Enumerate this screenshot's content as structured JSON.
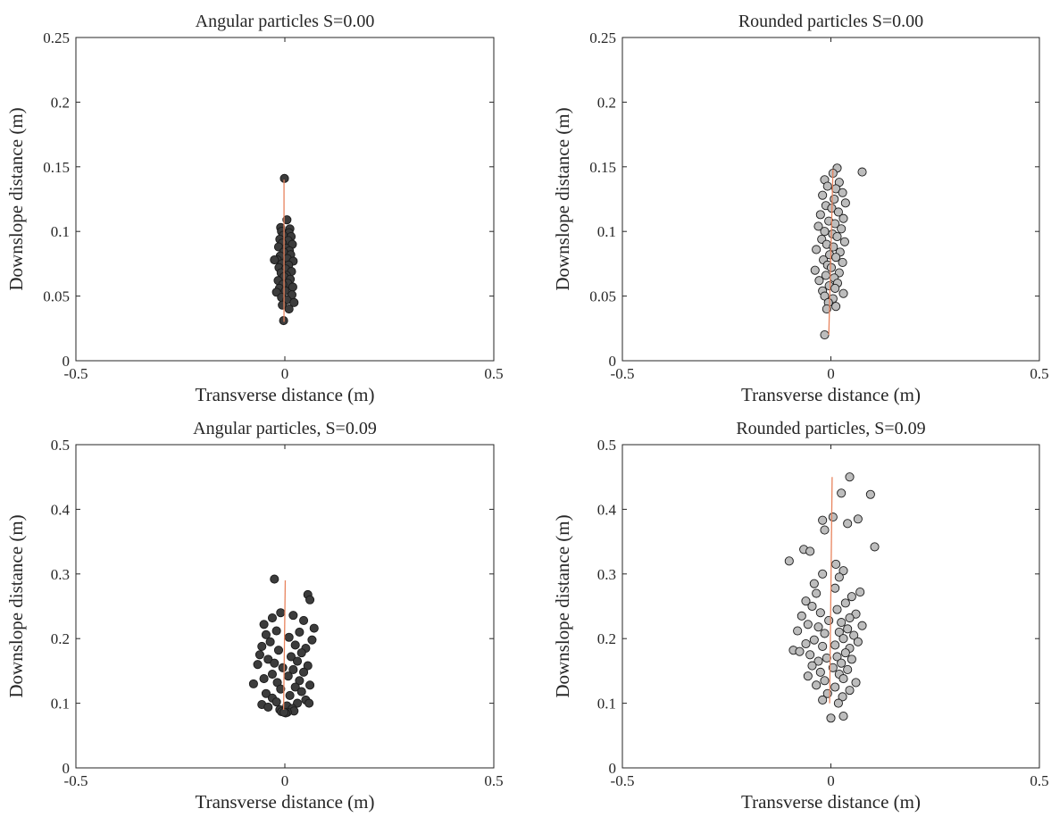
{
  "chart_data": [
    {
      "type": "scatter",
      "title": "Angular particles S=0.00",
      "xlabel": "Transverse distance (m)",
      "ylabel": "Downslope distance (m)",
      "xlim": [
        -0.5,
        0.5
      ],
      "ylim": [
        0,
        0.25
      ],
      "xticks": [
        -0.5,
        0,
        0.5
      ],
      "xtick_labels": [
        "-0.5",
        "0",
        "0.5"
      ],
      "yticks": [
        0,
        0.05,
        0.1,
        0.15,
        0.2,
        0.25
      ],
      "ytick_labels": [
        "0",
        "0.05",
        "0.1",
        "0.15",
        "0.2",
        "0.25"
      ],
      "grid": false,
      "marker_color": "#3c3c3c",
      "line_color": "#e8845e",
      "trend_line": {
        "x": [
          -0.002,
          -0.002
        ],
        "y": [
          0.03,
          0.14
        ]
      },
      "points": {
        "x": [
          -0.001,
          0.005,
          -0.01,
          0.012,
          -0.008,
          0.01,
          -0.004,
          0.015,
          -0.012,
          0.008,
          -0.006,
          0.018,
          -0.015,
          0.003,
          0.011,
          -0.003,
          0.014,
          -0.011,
          0.006,
          -0.018,
          0.02,
          -0.007,
          0.009,
          -0.014,
          0.002,
          0.016,
          -0.009,
          0.004,
          -0.002,
          0.013,
          -0.016,
          0.007,
          -0.005,
          0.019,
          -0.013,
          0.001,
          -0.02,
          0.017,
          -0.008,
          0.005,
          -0.025,
          0.022,
          -0.006,
          0.01,
          -0.003
        ],
        "y": [
          0.141,
          0.109,
          0.103,
          0.102,
          0.1,
          0.099,
          0.097,
          0.096,
          0.094,
          0.093,
          0.091,
          0.09,
          0.088,
          0.087,
          0.085,
          0.084,
          0.082,
          0.081,
          0.079,
          0.078,
          0.077,
          0.075,
          0.074,
          0.072,
          0.071,
          0.069,
          0.068,
          0.066,
          0.065,
          0.063,
          0.062,
          0.06,
          0.059,
          0.057,
          0.056,
          0.054,
          0.053,
          0.051,
          0.049,
          0.047,
          0.078,
          0.045,
          0.043,
          0.04,
          0.031
        ]
      }
    },
    {
      "type": "scatter",
      "title": "Rounded particles S=0.00",
      "xlabel": "Transverse distance (m)",
      "ylabel": "Downslope distance (m)",
      "xlim": [
        -0.5,
        0.5
      ],
      "ylim": [
        0,
        0.25
      ],
      "xticks": [
        -0.5,
        0,
        0.5
      ],
      "xtick_labels": [
        "-0.5",
        "0",
        "0.5"
      ],
      "yticks": [
        0,
        0.05,
        0.1,
        0.15,
        0.2,
        0.25
      ],
      "ytick_labels": [
        "0",
        "0.05",
        "0.1",
        "0.15",
        "0.2",
        "0.25"
      ],
      "grid": false,
      "marker_color": "#bdbdbd",
      "line_color": "#e8845e",
      "trend_line": {
        "x": [
          -0.005,
          0.005
        ],
        "y": [
          0.02,
          0.148
        ]
      },
      "points": {
        "x": [
          0.015,
          0.075,
          0.005,
          -0.015,
          0.02,
          -0.008,
          0.012,
          0.028,
          -0.02,
          0.008,
          0.035,
          -0.012,
          0.002,
          0.018,
          -0.025,
          0.03,
          -0.005,
          0.01,
          -0.03,
          0.025,
          -0.015,
          0.004,
          0.015,
          -0.022,
          0.033,
          -0.01,
          0.006,
          -0.035,
          0.022,
          -0.003,
          0.012,
          -0.018,
          0.028,
          -0.008,
          0.001,
          -0.038,
          0.02,
          -0.012,
          0.008,
          -0.028,
          0.016,
          -0.004,
          0.01,
          -0.02,
          0.03,
          -0.015,
          0.005,
          -0.006,
          0.012,
          -0.01,
          -0.015
        ],
        "y": [
          0.149,
          0.146,
          0.145,
          0.14,
          0.138,
          0.135,
          0.133,
          0.13,
          0.128,
          0.125,
          0.122,
          0.12,
          0.118,
          0.115,
          0.113,
          0.11,
          0.108,
          0.106,
          0.104,
          0.102,
          0.1,
          0.098,
          0.096,
          0.094,
          0.092,
          0.09,
          0.088,
          0.086,
          0.084,
          0.082,
          0.08,
          0.078,
          0.076,
          0.074,
          0.072,
          0.07,
          0.068,
          0.066,
          0.064,
          0.062,
          0.06,
          0.058,
          0.056,
          0.054,
          0.052,
          0.05,
          0.048,
          0.045,
          0.042,
          0.04,
          0.02
        ]
      }
    },
    {
      "type": "scatter",
      "title": "Angular particles, S=0.09",
      "xlabel": "Transverse distance (m)",
      "ylabel": "Downslope distance (m)",
      "xlim": [
        -0.5,
        0.5
      ],
      "ylim": [
        0,
        0.5
      ],
      "xticks": [
        -0.5,
        0,
        0.5
      ],
      "xtick_labels": [
        "-0.5",
        "0",
        "0.5"
      ],
      "yticks": [
        0,
        0.1,
        0.2,
        0.3,
        0.4,
        0.5
      ],
      "ytick_labels": [
        "0",
        "0.1",
        "0.2",
        "0.3",
        "0.4",
        "0.5"
      ],
      "grid": false,
      "marker_color": "#3c3c3c",
      "line_color": "#e8845e",
      "trend_line": {
        "x": [
          -0.003,
          0.001
        ],
        "y": [
          0.09,
          0.29
        ]
      },
      "points": {
        "x": [
          -0.025,
          0.055,
          0.06,
          -0.01,
          0.02,
          -0.03,
          0.045,
          -0.05,
          0.07,
          -0.02,
          0.035,
          -0.045,
          0.01,
          0.065,
          -0.035,
          0.025,
          -0.055,
          0.05,
          -0.015,
          0.04,
          -0.06,
          0.015,
          -0.04,
          0.03,
          -0.025,
          0.055,
          -0.005,
          0.02,
          -0.065,
          0.045,
          -0.03,
          0.008,
          -0.05,
          0.035,
          -0.018,
          0.06,
          -0.075,
          0.025,
          -0.01,
          0.04,
          -0.045,
          0.012,
          -0.03,
          0.05,
          -0.02,
          0.03,
          -0.055,
          0.005,
          -0.04,
          0.018,
          -0.012,
          0.022,
          -0.008,
          0.006,
          0.058,
          0.002,
          -0.002
        ],
        "y": [
          0.292,
          0.268,
          0.26,
          0.24,
          0.236,
          0.232,
          0.228,
          0.222,
          0.216,
          0.212,
          0.21,
          0.206,
          0.202,
          0.198,
          0.195,
          0.19,
          0.188,
          0.185,
          0.182,
          0.178,
          0.175,
          0.172,
          0.168,
          0.165,
          0.162,
          0.158,
          0.155,
          0.152,
          0.16,
          0.148,
          0.145,
          0.142,
          0.138,
          0.135,
          0.132,
          0.128,
          0.13,
          0.125,
          0.122,
          0.118,
          0.115,
          0.112,
          0.108,
          0.105,
          0.102,
          0.1,
          0.098,
          0.096,
          0.094,
          0.092,
          0.09,
          0.088,
          0.087,
          0.086,
          0.1,
          0.085,
          0.086
        ]
      }
    },
    {
      "type": "scatter",
      "title": "Rounded particles, S=0.09",
      "xlabel": "Transverse distance (m)",
      "ylabel": "Downslope distance (m)",
      "xlim": [
        -0.5,
        0.5
      ],
      "ylim": [
        0,
        0.5
      ],
      "xticks": [
        -0.5,
        0,
        0.5
      ],
      "xtick_labels": [
        "-0.5",
        "0",
        "0.5"
      ],
      "yticks": [
        0,
        0.1,
        0.2,
        0.3,
        0.4,
        0.5
      ],
      "ytick_labels": [
        "0",
        "0.1",
        "0.2",
        "0.3",
        "0.4",
        "0.5"
      ],
      "grid": false,
      "marker_color": "#bdbdbd",
      "line_color": "#e8845e",
      "trend_line": {
        "x": [
          -0.003,
          0.003
        ],
        "y": [
          0.1,
          0.45
        ]
      },
      "points": {
        "x": [
          0.045,
          0.025,
          0.095,
          0.005,
          0.065,
          -0.02,
          0.04,
          -0.015,
          0.105,
          -0.1,
          -0.065,
          -0.05,
          0.012,
          0.03,
          -0.02,
          0.02,
          -0.04,
          0.07,
          -0.035,
          0.01,
          0.05,
          -0.06,
          0.035,
          -0.045,
          0.015,
          -0.025,
          0.06,
          -0.07,
          0.045,
          -0.005,
          0.025,
          -0.055,
          0.075,
          -0.03,
          0.04,
          -0.08,
          0.02,
          -0.015,
          0.055,
          -0.09,
          0.03,
          -0.04,
          0.065,
          -0.06,
          0.01,
          -0.02,
          0.045,
          -0.075,
          0.035,
          -0.05,
          0.015,
          -0.01,
          0.05,
          -0.03,
          0.025,
          -0.045,
          0.005,
          0.04,
          -0.025,
          0.02,
          -0.055,
          0.03,
          -0.015,
          0.06,
          -0.035,
          0.01,
          0.045,
          -0.008,
          0.028,
          -0.02,
          0.018,
          0.03,
          0.0
        ],
        "y": [
          0.45,
          0.425,
          0.423,
          0.388,
          0.385,
          0.383,
          0.378,
          0.368,
          0.342,
          0.32,
          0.338,
          0.335,
          0.315,
          0.305,
          0.3,
          0.295,
          0.285,
          0.272,
          0.27,
          0.278,
          0.265,
          0.258,
          0.255,
          0.25,
          0.245,
          0.24,
          0.238,
          0.235,
          0.232,
          0.228,
          0.225,
          0.222,
          0.22,
          0.218,
          0.215,
          0.212,
          0.21,
          0.208,
          0.205,
          0.182,
          0.2,
          0.198,
          0.195,
          0.192,
          0.19,
          0.188,
          0.185,
          0.18,
          0.178,
          0.175,
          0.172,
          0.17,
          0.168,
          0.165,
          0.162,
          0.158,
          0.155,
          0.152,
          0.148,
          0.145,
          0.142,
          0.138,
          0.135,
          0.132,
          0.128,
          0.125,
          0.12,
          0.115,
          0.11,
          0.105,
          0.1,
          0.08,
          0.077
        ]
      }
    }
  ]
}
